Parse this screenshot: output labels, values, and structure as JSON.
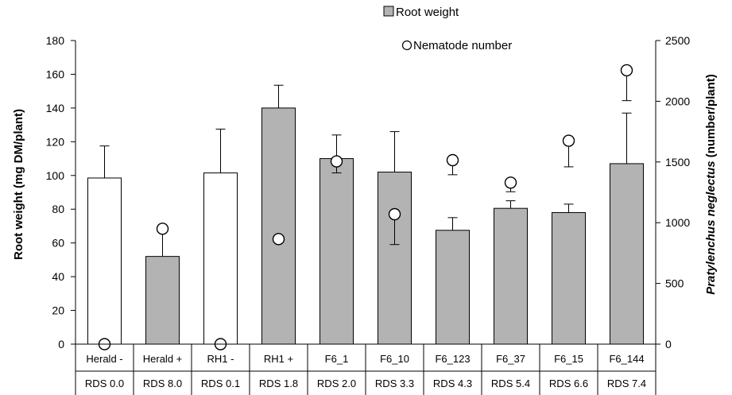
{
  "chart_data": {
    "type": "bar",
    "categories": [
      "Herald -",
      "Herald +",
      "RH1 -",
      "RH1 +",
      "F6_1",
      "F6_10",
      "F6_123",
      "F6_37",
      "F6_15",
      "F6_144"
    ],
    "categories_row2": [
      "RDS 0.0",
      "RDS 8.0",
      "RDS 0.1",
      "RDS 1.8",
      "RDS 2.0",
      "RDS 3.3",
      "RDS 4.3",
      "RDS 5.4",
      "RDS 6.6",
      "RDS 7.4"
    ],
    "bar_fill_colors": [
      "#ffffff",
      "#b3b3b3",
      "#ffffff",
      "#b3b3b3",
      "#b3b3b3",
      "#b3b3b3",
      "#b3b3b3",
      "#b3b3b3",
      "#b3b3b3",
      "#b3b3b3"
    ],
    "series": [
      {
        "name": "Root weight",
        "axis": "left",
        "kind": "bar",
        "values": [
          98.5,
          52,
          101.5,
          140,
          110,
          102,
          67.5,
          80.5,
          78,
          107
        ],
        "error_upper": [
          19,
          16.5,
          26,
          13.5,
          14,
          24,
          7.5,
          4.5,
          5,
          30
        ]
      },
      {
        "name": "Nematode number",
        "axis": "right",
        "kind": "point",
        "values": [
          0,
          950,
          0,
          865,
          1505,
          1070,
          1515,
          1330,
          1675,
          2255
        ],
        "error_lower": [
          0,
          0,
          0,
          0,
          95,
          250,
          120,
          75,
          215,
          250
        ]
      }
    ],
    "ylabel": "Root weight (mg DM/plant)",
    "ylim": [
      0,
      180
    ],
    "yticks": [
      0,
      20,
      40,
      60,
      80,
      100,
      120,
      140,
      160,
      180
    ],
    "y2label_italic": "Pratylenchus neglectus",
    "y2label_rest": " (number/plant)",
    "y2lim": [
      0,
      2500
    ],
    "y2ticks": [
      0,
      500,
      1000,
      1500,
      2000,
      2500
    ],
    "grid": false,
    "legend_position": "top-right"
  }
}
